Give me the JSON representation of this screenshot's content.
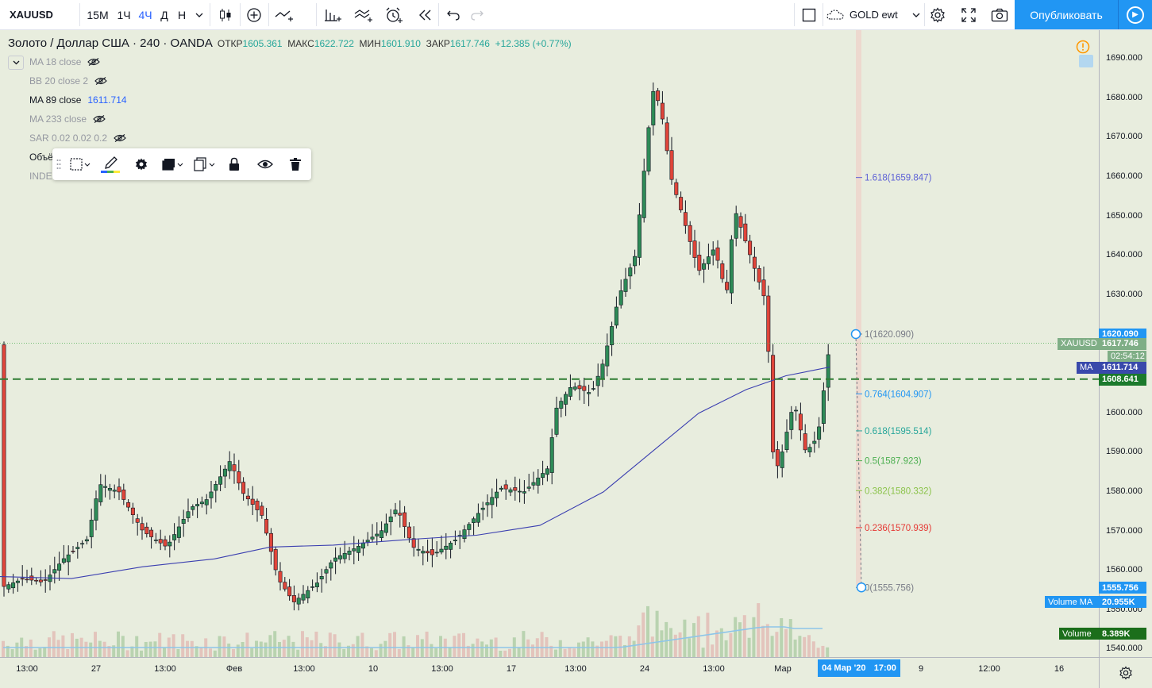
{
  "toolbar": {
    "symbol": "XAUUSD",
    "intervals": [
      "15М",
      "1Ч",
      "4Ч",
      "Д",
      "Н"
    ],
    "active_interval": "4Ч",
    "layout_name": "GOLD ewt",
    "publish_label": "Опубликовать"
  },
  "legend": {
    "instrument": "Золото / Доллар США · 240 · OANDA",
    "open_label": "ОТКР",
    "open": "1605.361",
    "high_label": "МАКС",
    "high": "1622.722",
    "low_label": "МИН",
    "low": "1601.910",
    "close_label": "ЗАКР",
    "close": "1617.746",
    "change": "+12.385 (+0.77%)",
    "indicators": [
      {
        "label": "MA 18 close",
        "value": "",
        "hidden": true
      },
      {
        "label": "BB 20 close 2",
        "value": "",
        "hidden": true
      },
      {
        "label": "MA 89 close",
        "value": "1611.714",
        "hidden": false
      },
      {
        "label": "MA 233 close",
        "value": "",
        "hidden": true
      },
      {
        "label": "SAR 0.02 0.02 0.2",
        "value": "",
        "hidden": true
      },
      {
        "label": "Объё",
        "value": "",
        "hidden": false
      },
      {
        "label": "INDE",
        "value": "",
        "hidden": false
      }
    ]
  },
  "fib_levels": [
    {
      "ratio": "1.618",
      "price": "1659.847",
      "text": "1.618(1659.847)",
      "color": "#5b5fd6"
    },
    {
      "ratio": "1",
      "price": "1620.090",
      "text": "1(1620.090)",
      "color": "#787b86"
    },
    {
      "ratio": "0.764",
      "price": "1604.907",
      "text": "0.764(1604.907)",
      "color": "#2196f3"
    },
    {
      "ratio": "0.618",
      "price": "1595.514",
      "text": "0.618(1595.514)",
      "color": "#26a69a"
    },
    {
      "ratio": "0.5",
      "price": "1587.923",
      "text": "0.5(1587.923)",
      "color": "#4caf50"
    },
    {
      "ratio": "0.382",
      "price": "1580.332",
      "text": "0.382(1580.332)",
      "color": "#8bc34a"
    },
    {
      "ratio": "0.236",
      "price": "1570.939",
      "text": "0.236(1570.939)",
      "color": "#e53935"
    },
    {
      "ratio": "0",
      "price": "1555.756",
      "text": "0(1555.756)",
      "color": "#787b86"
    }
  ],
  "price_axis": {
    "ticks": [
      "1690.000",
      "1680.000",
      "1670.000",
      "1660.000",
      "1650.000",
      "1640.000",
      "1630.000",
      "1620.000",
      "1610.000",
      "1600.000",
      "1590.000",
      "1580.000",
      "1570.000",
      "1560.000",
      "1550.000",
      "1540.000"
    ],
    "labels": {
      "fib_top": "1620.090",
      "xauusd_tag": "XAUUSD",
      "current_price": "1617.746",
      "countdown": "02:54:12",
      "ma_tag": "MA",
      "ma_value": "1611.714",
      "line_price": "1608.641",
      "fib_bottom": "1555.756",
      "volume_ma_tag": "Volume MA",
      "volume_ma_value": "20.955K",
      "volume_tag": "Volume",
      "volume_value": "8.389K"
    }
  },
  "time_axis": {
    "ticks": [
      "13:00",
      "27",
      "13:00",
      "Фев",
      "13:00",
      "10",
      "13:00",
      "17",
      "13:00",
      "24",
      "13:00",
      "Мар",
      "9",
      "12:00",
      "16"
    ],
    "cursor_date": "04 Мар '20",
    "cursor_time": "17:00"
  },
  "colors": {
    "up": "#2e8b57",
    "down": "#e0453a",
    "background": "#e8edde",
    "ma": "#3b3fb0",
    "volume_ma": "#8ec5e8",
    "accent": "#2196f3"
  },
  "icons": [
    "candles-icon",
    "add-indicator-icon",
    "compare-icon",
    "bars-icon",
    "template-icon",
    "alert-icon",
    "replay-icon",
    "undo-icon",
    "redo-icon",
    "fullscreen-square-icon",
    "cloud-icon",
    "gear-icon",
    "expand-icon",
    "camera-icon",
    "play-icon",
    "eye-off-icon",
    "select-icon",
    "pencil-icon",
    "lock-icon",
    "eye-icon",
    "trash-icon",
    "clone-icon",
    "warning-icon"
  ]
}
